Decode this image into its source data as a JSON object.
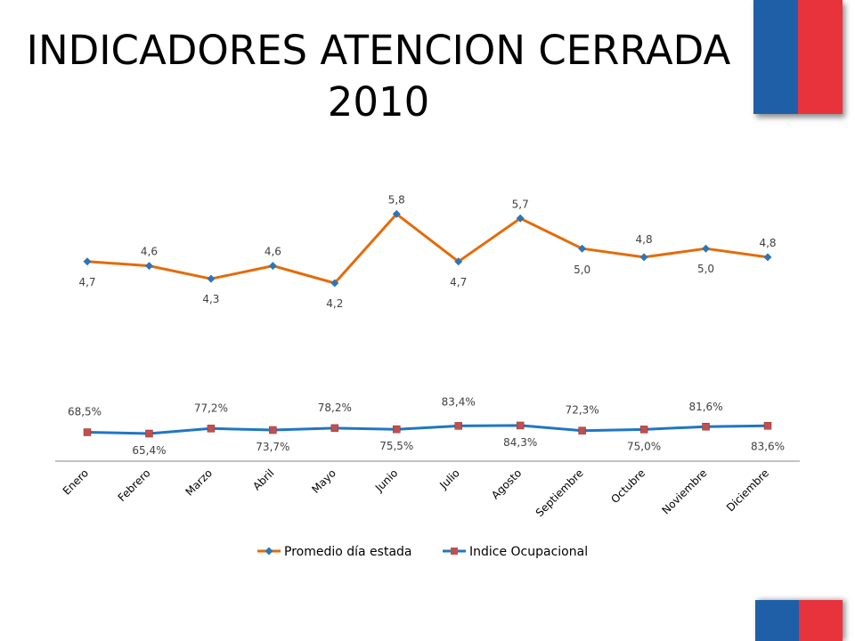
{
  "slide": {
    "title_line1": "INDICADORES ATENCION CERRADA",
    "title_line2": "2010",
    "flag_colors": {
      "blue": "#1f5fa8",
      "red": "#e8333c"
    }
  },
  "chart_data": {
    "type": "line",
    "title": "",
    "xlabel": "",
    "ylabel": "",
    "categories": [
      "Enero",
      "Febrero",
      "Marzo",
      "Abril",
      "Mayo",
      "Junio",
      "Julio",
      "Agosto",
      "Septiembre",
      "Octubre",
      "Noviembre",
      "Diciembre"
    ],
    "series": [
      {
        "name": "Promedio día estada",
        "color": "#e36c09",
        "marker": "diamond",
        "marker_color": "#2e75b6",
        "values": [
          4.7,
          4.6,
          4.3,
          4.6,
          4.2,
          5.8,
          4.7,
          5.7,
          5.0,
          4.8,
          5.0,
          4.8
        ],
        "labels": [
          "4,7",
          "4,6",
          "4,3",
          "4,6",
          "4,2",
          "5,8",
          "4,7",
          "5,7",
          "5,0",
          "4,8",
          "5,0",
          "4,8"
        ]
      },
      {
        "name": "Indice Ocupacional",
        "color": "#1f77c4",
        "marker": "square",
        "marker_color": "#c0504d",
        "values": [
          68.5,
          65.4,
          77.2,
          73.7,
          78.2,
          75.5,
          83.4,
          84.3,
          72.3,
          75.0,
          81.6,
          83.6
        ],
        "labels": [
          "68,5%",
          "65,4%",
          "77,2%",
          "73,7%",
          "78,2%",
          "75,5%",
          "83,4%",
          "84,3%",
          "72,3%",
          "75,0%",
          "81,6%",
          "83,6%"
        ]
      }
    ],
    "legend": "bottom",
    "grid": false
  }
}
